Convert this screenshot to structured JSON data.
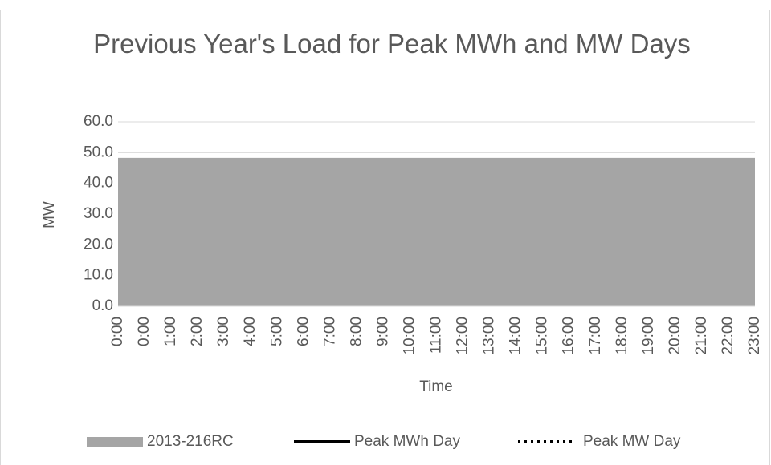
{
  "chart_data": {
    "type": "area",
    "title": "Previous Year's Load for Peak MWh and MW Days",
    "x_label": "Time",
    "y_label": "MW",
    "categories": [
      "0:00",
      "0:00",
      "1:00",
      "2:00",
      "3:00",
      "4:00",
      "5:00",
      "6:00",
      "7:00",
      "8:00",
      "9:00",
      "10:00",
      "11:00",
      "12:00",
      "13:00",
      "14:00",
      "15:00",
      "16:00",
      "17:00",
      "18:00",
      "19:00",
      "20:00",
      "21:00",
      "22:00",
      "23:00"
    ],
    "series": [
      {
        "name": "2013-216RC",
        "color": "#a5a5a5",
        "style": "area",
        "values": [
          48.3,
          48.3,
          48.3,
          48.3,
          48.3,
          48.3,
          48.3,
          48.3,
          48.3,
          48.3,
          48.3,
          48.3,
          48.3,
          48.3,
          48.3,
          48.3,
          48.3,
          48.3,
          48.3,
          48.3,
          48.3,
          48.3,
          48.3,
          48.3,
          48.3
        ]
      },
      {
        "name": "Peak MWh Day",
        "color": "#000000",
        "style": "solid",
        "values": [
          null,
          null,
          null,
          null,
          null,
          null,
          null,
          null,
          null,
          null,
          null,
          null,
          null,
          null,
          null,
          null,
          null,
          null,
          null,
          null,
          null,
          null,
          null,
          null,
          null
        ]
      },
      {
        "name": "Peak MW Day",
        "color": "#000000",
        "style": "dotted",
        "values": [
          null,
          null,
          null,
          null,
          null,
          null,
          null,
          null,
          null,
          null,
          null,
          null,
          null,
          null,
          null,
          null,
          null,
          null,
          null,
          null,
          null,
          null,
          null,
          null,
          null
        ]
      }
    ],
    "ylim": [
      0,
      60
    ],
    "yticks": [
      {
        "value": 0,
        "label": "0.0"
      },
      {
        "value": 10,
        "label": "10.0"
      },
      {
        "value": 20,
        "label": "20.0"
      },
      {
        "value": 30,
        "label": "30.0"
      },
      {
        "value": 40,
        "label": "40.0"
      },
      {
        "value": 50,
        "label": "50.0"
      },
      {
        "value": 60,
        "label": "60.0"
      }
    ],
    "grid": true,
    "legend": "bottom"
  }
}
